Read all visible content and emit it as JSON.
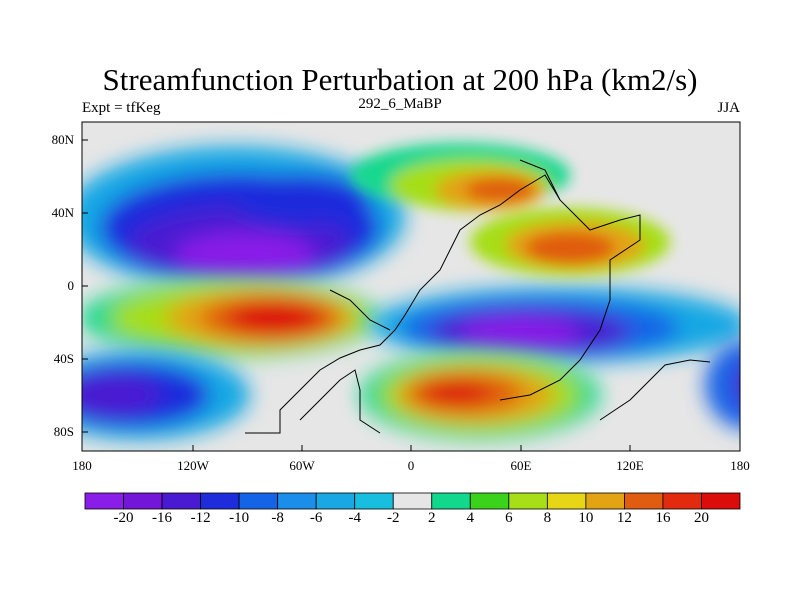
{
  "title": "Streamfunction Perturbation at 200 hPa (km2/s)",
  "subtitle_left": "Expt = tfKeg",
  "subtitle_center": "292_6_MaBP",
  "subtitle_right": "JJA",
  "y_ticks": [
    "80N",
    "40N",
    "0",
    "40S",
    "80S"
  ],
  "x_ticks": [
    "180",
    "120W",
    "60W",
    "0",
    "60E",
    "120E",
    "180"
  ],
  "colorbar": {
    "labels": [
      "-20",
      "-16",
      "-12",
      "-10",
      "-8",
      "-6",
      "-4",
      "-2",
      "2",
      "4",
      "6",
      "8",
      "10",
      "12",
      "16",
      "20"
    ],
    "colors": [
      "#8a1ee8",
      "#7316d8",
      "#4a1ad2",
      "#1e2cdc",
      "#1664e6",
      "#1a8ee8",
      "#19a8e4",
      "#18bee0",
      "#e6e6e6",
      "#12d88e",
      "#3ad21a",
      "#a6de18",
      "#e6d616",
      "#e2a412",
      "#e05c10",
      "#e22a0e",
      "#dc0c0c"
    ]
  },
  "chart_data": {
    "type": "heatmap",
    "title": "Streamfunction Perturbation at 200 hPa (km2/s)",
    "x_range": [
      -180,
      180
    ],
    "y_range": [
      -90,
      90
    ],
    "features": [
      {
        "kind": "minimum",
        "lon": -150,
        "lat": 20,
        "value": -20
      },
      {
        "kind": "minimum",
        "lon": -60,
        "lat": 45,
        "value": -10
      },
      {
        "kind": "minimum",
        "lon": 50,
        "lat": -25,
        "value": -20
      },
      {
        "kind": "minimum",
        "lon": -170,
        "lat": -55,
        "value": -20
      },
      {
        "kind": "minimum",
        "lon": 175,
        "lat": -55,
        "value": -16
      },
      {
        "kind": "maximum",
        "lon": -75,
        "lat": -15,
        "value": 20
      },
      {
        "kind": "maximum",
        "lon": 50,
        "lat": 50,
        "value": 16
      },
      {
        "kind": "maximum",
        "lon": 90,
        "lat": 25,
        "value": 16
      },
      {
        "kind": "maximum",
        "lon": 30,
        "lat": -60,
        "value": 20
      }
    ]
  }
}
